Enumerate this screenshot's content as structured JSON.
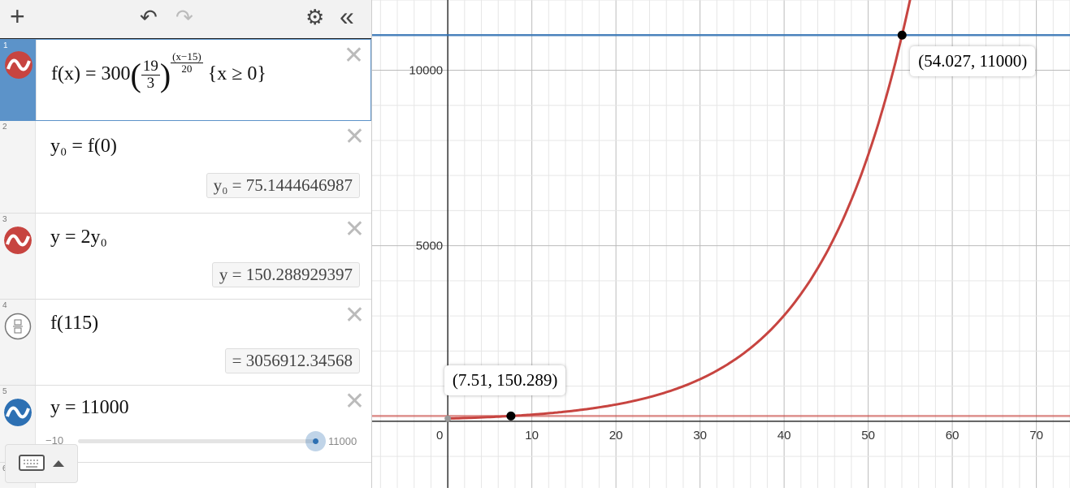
{
  "toolbar": {
    "add": "+",
    "undo": "↶",
    "redo": "↷",
    "settings": "⚙",
    "collapse": "«"
  },
  "expressions": [
    {
      "num": "1",
      "color": "#c74440",
      "parts": {
        "lhs": "f(x) = 300",
        "frac_n": "19",
        "frac_d": "3",
        "exp_n": "(x−15)",
        "exp_d": "20",
        "cond": "{x ≥ 0}"
      }
    },
    {
      "num": "2",
      "expr": "y₀ = f(0)",
      "result": "y₀  =  75.1444646987"
    },
    {
      "num": "3",
      "color": "#c74440",
      "expr": "y = 2y₀",
      "result": "y  =  150.288929397"
    },
    {
      "num": "4",
      "expr": "f(115)",
      "result": "=  3056912.34568"
    },
    {
      "num": "5",
      "color": "#2d70b3",
      "expr": "y = 11000",
      "slider": {
        "min": "−10",
        "max": "11000",
        "value": 11000
      }
    },
    {
      "num": "6"
    }
  ],
  "graph": {
    "x_ticks": [
      "0",
      "10",
      "20",
      "30",
      "40",
      "50",
      "60",
      "70"
    ],
    "y_ticks": [
      "5000",
      "10000"
    ],
    "xrange": [
      -9,
      74
    ],
    "yrange": [
      -1900,
      12000
    ],
    "curve_color": "#c74440",
    "line_color": "#2d70b3",
    "points": [
      {
        "label": "(7.51, 150.289)",
        "x": 7.51,
        "y": 150.289
      },
      {
        "label": "(54.027, 11000)",
        "x": 54.027,
        "y": 11000
      }
    ]
  }
}
